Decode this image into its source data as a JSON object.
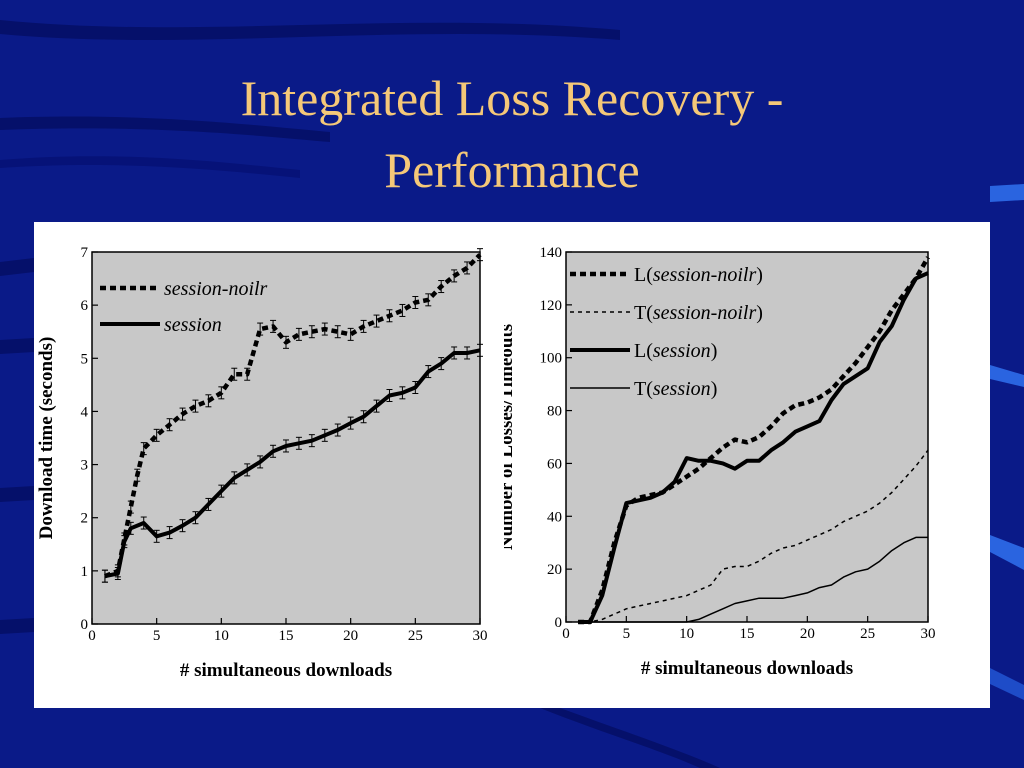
{
  "slide": {
    "title_line1": "Integrated Loss Recovery  -",
    "title_line2": "Performance"
  },
  "colors": {
    "background": "#0a1a88",
    "title": "#f5c878",
    "plot_area": "#c8c8c8",
    "figure_panel": "#ffffff"
  },
  "chart_data": [
    {
      "type": "line",
      "xlabel": "# simultaneous downloads",
      "ylabel": "Download time (seconds)",
      "xlim": [
        0,
        30
      ],
      "ylim": [
        0,
        7
      ],
      "xticks": [
        0,
        5,
        10,
        15,
        20,
        25,
        30
      ],
      "yticks": [
        0,
        1,
        2,
        3,
        4,
        5,
        6,
        7
      ],
      "grid": false,
      "legend_position": "top-left",
      "series": [
        {
          "name": "session-noilr",
          "style": "dashed-thick",
          "x": [
            1,
            2,
            2.5,
            3,
            3.5,
            4,
            5,
            6,
            7,
            8,
            9,
            10,
            11,
            12,
            13,
            14,
            15,
            16,
            17,
            18,
            19,
            20,
            21,
            22,
            23,
            24,
            25,
            26,
            27,
            28,
            29,
            30
          ],
          "y": [
            0.9,
            1.0,
            1.6,
            2.2,
            2.8,
            3.3,
            3.55,
            3.75,
            3.95,
            4.1,
            4.2,
            4.35,
            4.7,
            4.7,
            5.55,
            5.6,
            5.3,
            5.45,
            5.5,
            5.55,
            5.5,
            5.45,
            5.6,
            5.7,
            5.8,
            5.9,
            6.05,
            6.1,
            6.35,
            6.55,
            6.7,
            6.95
          ]
        },
        {
          "name": "session",
          "style": "solid-thick",
          "x": [
            1,
            2,
            2.5,
            3,
            4,
            5,
            6,
            7,
            8,
            9,
            10,
            11,
            12,
            13,
            14,
            15,
            16,
            17,
            18,
            19,
            20,
            21,
            22,
            23,
            24,
            25,
            26,
            27,
            28,
            29,
            30
          ],
          "y": [
            0.9,
            0.95,
            1.55,
            1.8,
            1.9,
            1.65,
            1.72,
            1.85,
            2.0,
            2.25,
            2.5,
            2.75,
            2.9,
            3.05,
            3.25,
            3.35,
            3.4,
            3.45,
            3.55,
            3.65,
            3.78,
            3.9,
            4.1,
            4.3,
            4.35,
            4.45,
            4.75,
            4.9,
            5.1,
            5.1,
            5.15
          ]
        }
      ]
    },
    {
      "type": "line",
      "xlabel": "# simultaneous downloads",
      "ylabel": "Number of Losses/Timeouts",
      "xlim": [
        0,
        30
      ],
      "ylim": [
        0,
        140
      ],
      "xticks": [
        0,
        5,
        10,
        15,
        20,
        25,
        30
      ],
      "yticks": [
        0,
        20,
        40,
        60,
        80,
        100,
        120,
        140
      ],
      "grid": false,
      "legend_position": "top-left",
      "series": [
        {
          "name": "L(session-noilr)",
          "legend_prefix": "L(",
          "legend_name": "session-noilr",
          "legend_suffix": ")",
          "style": "dashed-thick",
          "x": [
            1,
            2,
            3,
            4,
            5,
            6,
            7,
            8,
            9,
            10,
            11,
            12,
            13,
            14,
            15,
            16,
            17,
            18,
            19,
            20,
            21,
            22,
            23,
            24,
            25,
            26,
            27,
            28,
            29,
            30
          ],
          "y": [
            0,
            0,
            12,
            30,
            44,
            47,
            48,
            49,
            52,
            55,
            58,
            62,
            66,
            69,
            68,
            70,
            74,
            79,
            82,
            83,
            85,
            88,
            93,
            98,
            104,
            110,
            118,
            124,
            130,
            138
          ]
        },
        {
          "name": "T(session-noilr)",
          "legend_prefix": "T(",
          "legend_name": "session-noilr",
          "legend_suffix": ")",
          "style": "dashed-thin",
          "x": [
            1,
            2,
            3,
            4,
            5,
            6,
            7,
            8,
            9,
            10,
            11,
            12,
            13,
            14,
            15,
            16,
            17,
            18,
            19,
            20,
            21,
            22,
            23,
            24,
            25,
            26,
            27,
            28,
            29,
            30
          ],
          "y": [
            0,
            0,
            1,
            3,
            5,
            6,
            7,
            8,
            9,
            10,
            12,
            14,
            20,
            21,
            21,
            23,
            26,
            28,
            29,
            31,
            33,
            35,
            38,
            40,
            42,
            45,
            49,
            54,
            59,
            65
          ]
        },
        {
          "name": "L(session)",
          "legend_prefix": "L(",
          "legend_name": "session",
          "legend_suffix": ")",
          "style": "solid-thick",
          "x": [
            1,
            2,
            3,
            4,
            5,
            6,
            7,
            8,
            9,
            10,
            11,
            12,
            13,
            14,
            15,
            16,
            17,
            18,
            19,
            20,
            21,
            22,
            23,
            24,
            25,
            26,
            27,
            28,
            29,
            30
          ],
          "y": [
            0,
            0,
            10,
            28,
            45,
            46,
            47,
            49,
            53,
            62,
            61,
            61,
            60,
            58,
            61,
            61,
            65,
            68,
            72,
            74,
            76,
            84,
            90,
            93,
            96,
            106,
            112,
            122,
            130,
            132
          ]
        },
        {
          "name": "T(session)",
          "legend_prefix": "T(",
          "legend_name": "session",
          "legend_suffix": ")",
          "style": "solid-thin",
          "x": [
            1,
            2,
            3,
            4,
            5,
            6,
            7,
            8,
            9,
            10,
            11,
            12,
            13,
            14,
            15,
            16,
            17,
            18,
            19,
            20,
            21,
            22,
            23,
            24,
            25,
            26,
            27,
            28,
            29,
            30
          ],
          "y": [
            0,
            0,
            0,
            0,
            0,
            0,
            0,
            0,
            0,
            0,
            1,
            3,
            5,
            7,
            8,
            9,
            9,
            9,
            10,
            11,
            13,
            14,
            17,
            19,
            20,
            23,
            27,
            30,
            32,
            32
          ]
        }
      ]
    }
  ]
}
